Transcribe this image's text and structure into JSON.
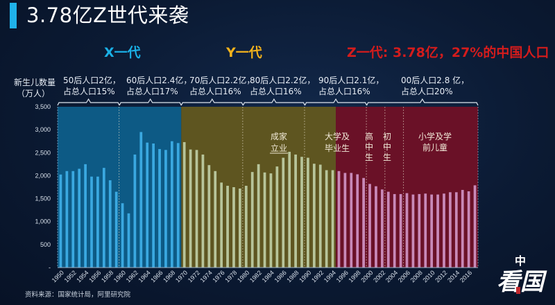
{
  "header": {
    "title": "3.78亿Z世代来袭",
    "accent_color": "#1fb2ea"
  },
  "generations": {
    "x": {
      "label": "X一代",
      "color": "#1ab0e6"
    },
    "y": {
      "label": "Y一代",
      "color": "#f2b21c"
    },
    "z": {
      "label": "Z一代: 3.78亿，27%的中国人口",
      "color": "#d41c1c"
    }
  },
  "cohorts": [
    {
      "line1": "50后人口2亿，",
      "line2": "占总人口15%"
    },
    {
      "line1": "60后人口2.4亿，",
      "line2": "占总人口17%"
    },
    {
      "line1": "70后人口2.2亿，",
      "line2": "占总人口16%"
    },
    {
      "line1": "80后人口2.2亿，",
      "line2": "占总人口16%"
    },
    {
      "line1": "90后人口2.1亿，",
      "line2": "占总人口16%"
    },
    {
      "line1": "00后人口2.8 亿，",
      "line2": "占总人口20%"
    }
  ],
  "stage_labels": [
    {
      "text": "成家\n立业"
    },
    {
      "text": "大学及\n毕业生"
    },
    {
      "text": "高\n中\n生"
    },
    {
      "text": "初\n中\n生"
    },
    {
      "text": "小学及学\n前儿童"
    }
  ],
  "source": "资料来源：国家统计局，阿里研究院",
  "logo": {
    "text": "看中国"
  },
  "chart_data": {
    "type": "bar",
    "title": "3.78亿Z世代来袭",
    "ylabel": "新生儿数量（万人）",
    "ylabel_line1": "新生儿数量",
    "ylabel_line2": "（万人）",
    "xlabel": "",
    "ylim": [
      0,
      3500
    ],
    "yticks": [
      "-",
      "500",
      "1,000",
      "1,500",
      "2,000",
      "2,500",
      "3,000",
      "3,500"
    ],
    "xtick_labels": [
      "1950",
      "1952",
      "1954",
      "1956",
      "1958",
      "1960",
      "1962",
      "1964",
      "1966",
      "1968",
      "1970",
      "1972",
      "1974",
      "1976",
      "1978",
      "1980",
      "1982",
      "1984",
      "1986",
      "1988",
      "1990",
      "1992",
      "1994",
      "1996",
      "1998",
      "2000",
      "2002",
      "2004",
      "2006",
      "2008",
      "2010",
      "2012",
      "2014",
      "2016"
    ],
    "categories": [
      1950,
      1951,
      1952,
      1953,
      1954,
      1955,
      1956,
      1957,
      1958,
      1959,
      1960,
      1961,
      1962,
      1963,
      1964,
      1965,
      1966,
      1967,
      1968,
      1969,
      1970,
      1971,
      1972,
      1973,
      1974,
      1975,
      1976,
      1977,
      1978,
      1979,
      1980,
      1981,
      1982,
      1983,
      1984,
      1985,
      1986,
      1987,
      1988,
      1989,
      1990,
      1991,
      1992,
      1993,
      1994,
      1995,
      1996,
      1997,
      1998,
      1999,
      2000,
      2001,
      2002,
      2003,
      2004,
      2005,
      2006,
      2007,
      2008,
      2009,
      2010,
      2011,
      2012,
      2013,
      2014,
      2015,
      2016,
      2017
    ],
    "values": [
      2025,
      2100,
      2100,
      2150,
      2250,
      1980,
      1980,
      2170,
      1900,
      1650,
      1400,
      1180,
      2460,
      2950,
      2720,
      2700,
      2580,
      2560,
      2750,
      2710,
      2730,
      2570,
      2560,
      2460,
      2230,
      2100,
      1850,
      1780,
      1750,
      1720,
      1780,
      2080,
      2250,
      2070,
      2050,
      2200,
      2390,
      2520,
      2460,
      2410,
      2390,
      2260,
      2240,
      2120,
      2120,
      2100,
      2060,
      2060,
      2030,
      1950,
      1820,
      1770,
      1700,
      1650,
      1600,
      1600,
      1620,
      1590,
      1600,
      1610,
      1590,
      1590,
      1610,
      1640,
      1640,
      1690,
      1660,
      1790
    ],
    "bands": [
      {
        "name": "X一代",
        "from": 1950,
        "to": 1969,
        "color": "#0d5a85"
      },
      {
        "name": "Y一代",
        "from": 1970,
        "to": 1994,
        "color": "#5e5520"
      },
      {
        "name": "Z一代",
        "from": 1995,
        "to": 2017,
        "color": "#6a1127"
      }
    ],
    "bar_colors": {
      "x": "#3aa8e0",
      "y": "#b7c49a",
      "z": "#c889b8"
    },
    "grid": false,
    "legend": "none"
  }
}
